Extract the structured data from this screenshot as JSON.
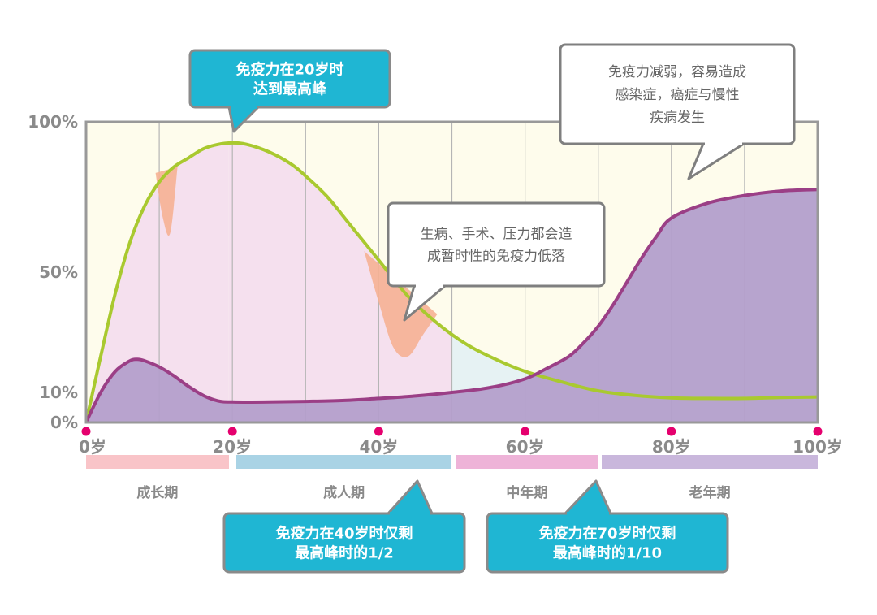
{
  "chart_data": {
    "type": "area",
    "x_unit": "岁",
    "xlim": [
      0,
      100
    ],
    "ylim": [
      0,
      100
    ],
    "x_ticks": [
      {
        "value": 0,
        "label": "0岁"
      },
      {
        "value": 20,
        "label": "20岁"
      },
      {
        "value": 40,
        "label": "40岁"
      },
      {
        "value": 60,
        "label": "60岁"
      },
      {
        "value": 80,
        "label": "80岁"
      },
      {
        "value": 100,
        "label": "100岁"
      }
    ],
    "y_ticks": [
      {
        "value": 0,
        "label": "0%"
      },
      {
        "value": 10,
        "label": "10%"
      },
      {
        "value": 50,
        "label": "50%"
      },
      {
        "value": 100,
        "label": "100%"
      }
    ],
    "grid": true,
    "series": [
      {
        "color": "#a9c92f",
        "x": [
          0,
          2,
          4,
          6,
          8,
          10,
          12,
          14,
          16,
          18,
          20,
          22,
          25,
          28,
          30,
          33,
          36,
          40,
          44,
          48,
          52,
          56,
          60,
          65,
          70,
          75,
          80,
          85,
          90,
          95,
          100
        ],
        "values": [
          0,
          22,
          43,
          60,
          72,
          80,
          85,
          88,
          91,
          92.5,
          93,
          92.5,
          90,
          86,
          82,
          75,
          66,
          54,
          42,
          33,
          26,
          21,
          17,
          13.5,
          10.5,
          9,
          8.2,
          8,
          8,
          8.3,
          8.5
        ]
      },
      {
        "color": "#9b3f86",
        "x": [
          0,
          2,
          4,
          6,
          7,
          8,
          10,
          12,
          14,
          16,
          18,
          20,
          25,
          30,
          35,
          40,
          45,
          50,
          55,
          60,
          63,
          66,
          68,
          70,
          72,
          74,
          76,
          78,
          80,
          85,
          90,
          95,
          100
        ],
        "values": [
          0,
          10,
          17,
          20.5,
          21,
          20.5,
          18.5,
          15.5,
          12,
          9,
          7.2,
          6.8,
          6.8,
          7,
          7.3,
          8,
          8.8,
          10,
          11.5,
          14.5,
          18,
          22,
          26.5,
          32,
          39,
          47,
          55,
          62,
          68,
          73,
          75.5,
          77,
          77.5
        ]
      }
    ],
    "dips": [
      {
        "x": [
          9.5,
          10.5,
          11.5,
          12.5
        ],
        "values": [
          83,
          68,
          63,
          85
        ]
      },
      {
        "x": [
          38,
          40,
          42,
          44,
          46,
          48
        ],
        "values": [
          57,
          40,
          25,
          22,
          29,
          36
        ]
      }
    ],
    "stages": [
      {
        "label": "成长期",
        "from": 0,
        "to": 19.5,
        "color": "#f9c4c8",
        "region": "#f5e0ee"
      },
      {
        "label": "成人期",
        "from": 20.5,
        "to": 50,
        "color": "#a9d3e5",
        "region": "#f5e0ee"
      },
      {
        "label": "中年期",
        "from": 50.5,
        "to": 70,
        "color": "#eeb3d8",
        "region": "#e6f2f3"
      },
      {
        "label": "老年期",
        "from": 70.5,
        "to": 100,
        "color": "#c9b7dc",
        "region": "#e6f2f3"
      }
    ],
    "annotations": [
      {
        "id": "peak",
        "style": "blue",
        "lines": [
          "免疫力在20岁时",
          "达到最高峰"
        ]
      },
      {
        "id": "age40",
        "style": "blue",
        "lines": [
          "免疫力在40岁时仅剩",
          "最高峰时的1/2"
        ]
      },
      {
        "id": "age70",
        "style": "blue",
        "lines": [
          "免疫力在70岁时仅剩",
          "最高峰时的1/10"
        ]
      },
      {
        "id": "temp-drop",
        "style": "white",
        "lines": [
          "生病、手术、压力都会造",
          "成暂时性的免疫力低落"
        ]
      },
      {
        "id": "old-age",
        "style": "white",
        "lines": [
          "免疫力减弱，容易造成",
          "感染症，癌症与慢性",
          "疾病发生"
        ]
      }
    ],
    "colors": {
      "plot_background": "#fefcec",
      "frame": "#999999",
      "purple_fill": "#b49fcb",
      "dip_fill": "#f6b193",
      "marker": "#e5006e",
      "callout_blue": "#1fb6d3",
      "axis_text": "#8a8a8a"
    }
  }
}
